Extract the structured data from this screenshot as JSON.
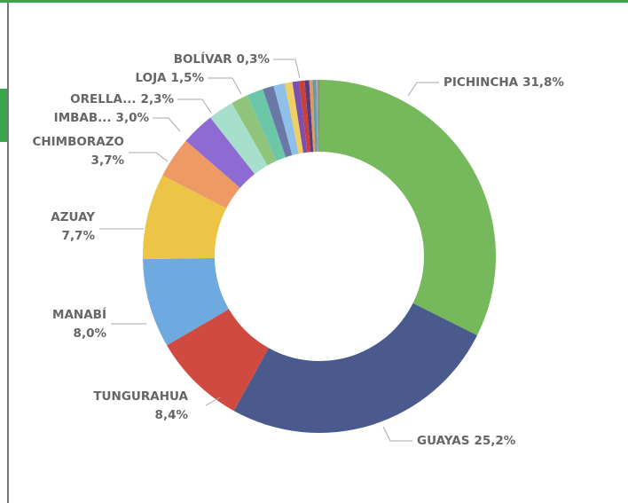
{
  "chart_data": {
    "type": "donut",
    "categories": [
      "PICHINCHA",
      "GUAYAS",
      "TUNGURAHUA",
      "MANABÍ",
      "AZUAY",
      "CHIMBORAZO",
      "IMBAB...",
      "ORELLA...",
      null,
      "LOJA",
      null,
      null,
      null,
      null,
      null,
      null,
      "BOLÍVAR",
      null,
      null,
      null
    ],
    "values": [
      31.8,
      25.2,
      8.4,
      8.0,
      7.7,
      3.7,
      3.0,
      2.3,
      1.5,
      1.5,
      1.0,
      1.0,
      0.7,
      0.6,
      0.5,
      0.4,
      0.3,
      0.3,
      0.2,
      0.1
    ],
    "value_labels": [
      "31,8%",
      "25,2%",
      "8,4%",
      "8,0%",
      "7,7%",
      "3,7%",
      "3,0%",
      "2,3%",
      null,
      "1,5%",
      null,
      null,
      null,
      null,
      null,
      null,
      "0,3%",
      null,
      null,
      null
    ],
    "colors": [
      "#76b95d",
      "#4a5a8c",
      "#d04a3f",
      "#6ea9e0",
      "#ecc546",
      "#ee9a64",
      "#8d6bd2",
      "#a6e0cc",
      "#8fc47a",
      "#6cc7a8",
      "#6a78a6",
      "#8ec0ea",
      "#f0d060",
      "#7b4fb0",
      "#c8403c",
      "#5a3a7a",
      "#e09a60",
      "#5aa0a8",
      "#a0a0a0",
      "#d06080"
    ]
  }
}
